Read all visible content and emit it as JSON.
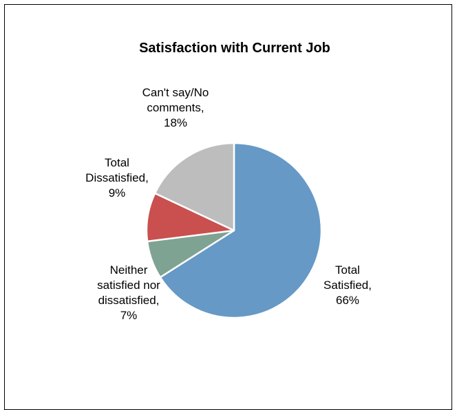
{
  "chart_data": {
    "type": "pie",
    "title": "Satisfaction with Current Job",
    "start_angle_deg": 0,
    "direction": "clockwise",
    "slices": [
      {
        "label_lines": [
          "Total",
          "Satisfied,",
          "66%"
        ],
        "value": 66,
        "color": "#6699c6"
      },
      {
        "label_lines": [
          "Neither",
          "satisfied nor",
          "dissatisfied,",
          "7%"
        ],
        "value": 7,
        "color": "#7fa393"
      },
      {
        "label_lines": [
          "Total",
          "Dissatisfied,",
          "9%"
        ],
        "value": 9,
        "color": "#c9504f"
      },
      {
        "label_lines": [
          "Can't say/No",
          "comments,",
          "18%"
        ],
        "value": 18,
        "color": "#bdbdbd"
      }
    ],
    "legend": "none",
    "border_color": "#ffffff"
  }
}
